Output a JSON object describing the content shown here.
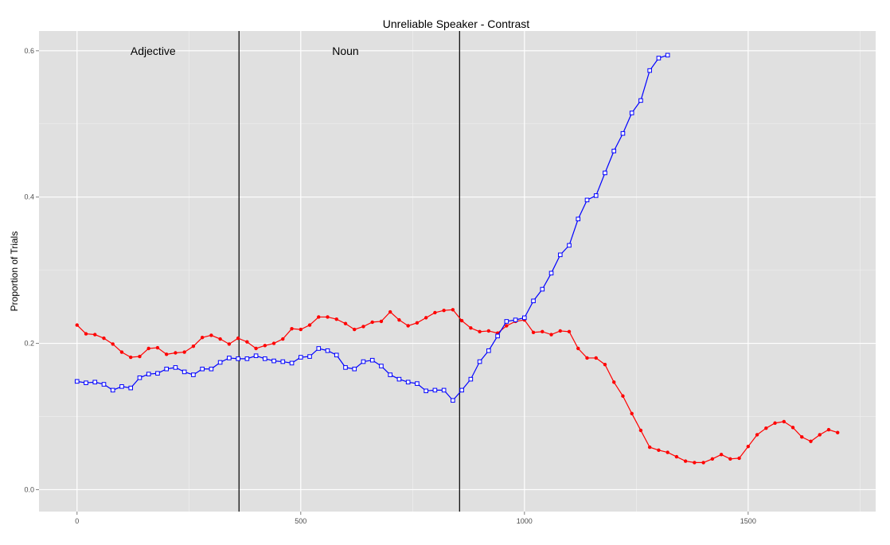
{
  "chart_data": {
    "type": "line",
    "title": "Unreliable Speaker - Contrast",
    "xlabel": "",
    "ylabel": "Proportion of Trials",
    "xlim": [
      -85,
      1785
    ],
    "ylim": [
      -0.03,
      0.627
    ],
    "xticks": [
      0,
      500,
      1000,
      1500
    ],
    "yticks": [
      0.0,
      0.2,
      0.4,
      0.6
    ],
    "ytick_labels": [
      "0.0",
      "0.2",
      "0.4",
      "0.6"
    ],
    "grid": true,
    "vlines": [
      362,
      855
    ],
    "annotations": [
      {
        "text": "Adjective",
        "x": 170,
        "y": 0.6
      },
      {
        "text": "Noun",
        "x": 600,
        "y": 0.6
      }
    ],
    "series": [
      {
        "color": "#ff0000",
        "marker": "dot",
        "x": [
          0,
          20,
          40,
          60,
          80,
          100,
          120,
          140,
          160,
          180,
          200,
          220,
          240,
          260,
          280,
          300,
          320,
          340,
          360,
          380,
          400,
          420,
          440,
          460,
          480,
          500,
          520,
          540,
          560,
          580,
          600,
          620,
          640,
          660,
          680,
          700,
          720,
          740,
          760,
          780,
          800,
          820,
          840,
          860,
          880,
          900,
          920,
          940,
          960,
          980,
          1000,
          1020,
          1040,
          1060,
          1080,
          1100,
          1120,
          1140,
          1160,
          1180,
          1200,
          1220,
          1240,
          1260,
          1280,
          1300,
          1320,
          1340,
          1360,
          1380,
          1400,
          1420,
          1440,
          1460,
          1480,
          1500,
          1520,
          1540,
          1560,
          1580,
          1600,
          1620,
          1640,
          1660,
          1680,
          1700
        ],
        "y": [
          0.225,
          0.213,
          0.212,
          0.207,
          0.199,
          0.188,
          0.181,
          0.182,
          0.193,
          0.194,
          0.185,
          0.187,
          0.188,
          0.196,
          0.208,
          0.211,
          0.206,
          0.199,
          0.207,
          0.202,
          0.193,
          0.197,
          0.2,
          0.206,
          0.22,
          0.219,
          0.225,
          0.236,
          0.236,
          0.233,
          0.227,
          0.219,
          0.223,
          0.229,
          0.23,
          0.243,
          0.232,
          0.224,
          0.228,
          0.235,
          0.242,
          0.245,
          0.246,
          0.231,
          0.221,
          0.216,
          0.217,
          0.214,
          0.224,
          0.23,
          0.232,
          0.215,
          0.216,
          0.212,
          0.217,
          0.216,
          0.193,
          0.18,
          0.18,
          0.171,
          0.147,
          0.128,
          0.104,
          0.081,
          0.058,
          0.054,
          0.051,
          0.045,
          0.039,
          0.037,
          0.037,
          0.042,
          0.048,
          0.042,
          0.043,
          0.059,
          0.075,
          0.084,
          0.091,
          0.093,
          0.085,
          0.072,
          0.066,
          0.075,
          0.082,
          0.078
        ]
      },
      {
        "color": "#0000ff",
        "marker": "square",
        "x": [
          0,
          20,
          40,
          60,
          80,
          100,
          120,
          140,
          160,
          180,
          200,
          220,
          240,
          260,
          280,
          300,
          320,
          340,
          360,
          380,
          400,
          420,
          440,
          460,
          480,
          500,
          520,
          540,
          560,
          580,
          600,
          620,
          640,
          660,
          680,
          700,
          720,
          740,
          760,
          780,
          800,
          820,
          840,
          860,
          880,
          900,
          920,
          940,
          960,
          980,
          1000,
          1020,
          1040,
          1060,
          1080,
          1100,
          1120,
          1140,
          1160,
          1180,
          1200,
          1220,
          1240,
          1260,
          1280,
          1300,
          1320
        ],
        "y": [
          0.148,
          0.146,
          0.147,
          0.144,
          0.136,
          0.141,
          0.139,
          0.153,
          0.158,
          0.159,
          0.165,
          0.167,
          0.161,
          0.157,
          0.165,
          0.165,
          0.174,
          0.18,
          0.179,
          0.179,
          0.183,
          0.179,
          0.176,
          0.175,
          0.173,
          0.181,
          0.182,
          0.193,
          0.19,
          0.184,
          0.167,
          0.165,
          0.175,
          0.177,
          0.169,
          0.157,
          0.151,
          0.147,
          0.145,
          0.135,
          0.136,
          0.136,
          0.122,
          0.136,
          0.151,
          0.175,
          0.19,
          0.21,
          0.23,
          0.232,
          0.235,
          0.258,
          0.274,
          0.296,
          0.321,
          0.334,
          0.37,
          0.396,
          0.402,
          0.433,
          0.463,
          0.487,
          0.515,
          0.532,
          0.573,
          0.59,
          0.594
        ]
      }
    ]
  }
}
